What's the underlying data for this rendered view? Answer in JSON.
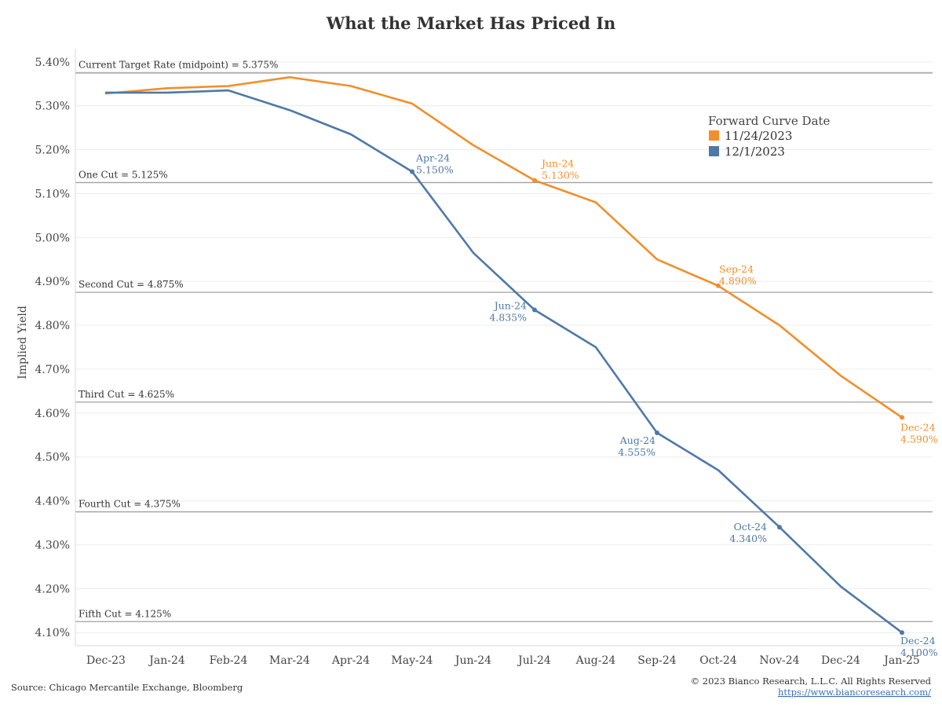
{
  "chart_data": {
    "type": "line",
    "title": "What the Market Has Priced In",
    "ylabel": "Implied Yield",
    "xlabel": "",
    "ylim": [
      4.07,
      5.43
    ],
    "y_ticks": [
      "4.10%",
      "4.20%",
      "4.30%",
      "4.40%",
      "4.50%",
      "4.60%",
      "4.70%",
      "4.80%",
      "4.90%",
      "5.00%",
      "5.10%",
      "5.20%",
      "5.30%",
      "5.40%"
    ],
    "y_tick_values": [
      4.1,
      4.2,
      4.3,
      4.4,
      4.5,
      4.6,
      4.7,
      4.8,
      4.9,
      5.0,
      5.1,
      5.2,
      5.3,
      5.4
    ],
    "categories": [
      "Dec-23",
      "Jan-24",
      "Feb-24",
      "Mar-24",
      "Apr-24",
      "May-24",
      "Jun-24",
      "Jul-24",
      "Aug-24",
      "Sep-24",
      "Oct-24",
      "Nov-24",
      "Dec-24",
      "Jan-25"
    ],
    "grid": true,
    "legend": {
      "title": "Forward Curve Date",
      "placement": "top-right"
    },
    "series": [
      {
        "name": "11/24/2023",
        "color": "#f28e2b",
        "x": [
          0,
          1,
          2,
          3,
          4,
          5,
          6,
          7,
          8,
          9,
          10,
          11,
          12,
          13
        ],
        "values": [
          5.328,
          5.34,
          5.345,
          5.365,
          5.345,
          5.305,
          5.21,
          5.13,
          5.08,
          4.95,
          4.89,
          4.8,
          4.685,
          4.59
        ],
        "annotations": [
          {
            "index": 7,
            "line1": "Jun-24",
            "line2": "5.130%"
          },
          {
            "index": 10,
            "line1": "Sep-24",
            "line2": "4.890%"
          },
          {
            "index": 13,
            "line1": "Dec-24",
            "line2": "4.590%"
          }
        ]
      },
      {
        "name": "12/1/2023",
        "color": "#4e79a7",
        "x": [
          0,
          1,
          2,
          3,
          4,
          5,
          6,
          7,
          8,
          9,
          10,
          11,
          12,
          13
        ],
        "values": [
          5.33,
          5.33,
          5.335,
          5.29,
          5.235,
          5.15,
          4.965,
          4.835,
          4.75,
          4.555,
          4.47,
          4.34,
          4.205,
          4.1
        ],
        "annotations": [
          {
            "index": 5,
            "line1": "Apr-24",
            "line2": "5.150%"
          },
          {
            "index": 7,
            "line1": "Jun-24",
            "line2": "4.835%"
          },
          {
            "index": 9,
            "line1": "Aug-24",
            "line2": "4.555%"
          },
          {
            "index": 11,
            "line1": "Oct-24",
            "line2": "4.340%"
          },
          {
            "index": 13,
            "line1": "Dec-24",
            "line2": "4.100%"
          }
        ]
      }
    ],
    "reference_lines": [
      {
        "value": 5.375,
        "label": "Current Target Rate (midpoint) = 5.375%"
      },
      {
        "value": 5.125,
        "label": "One Cut = 5.125%"
      },
      {
        "value": 4.875,
        "label": "Second Cut = 4.875%"
      },
      {
        "value": 4.625,
        "label": "Third Cut = 4.625%"
      },
      {
        "value": 4.375,
        "label": "Fourth Cut = 4.375%"
      },
      {
        "value": 4.125,
        "label": "Fifth Cut = 4.125%"
      }
    ]
  },
  "footer": {
    "source": "Source: Chicago Mercantile Exchange, Bloomberg",
    "copyright": "© 2023 Bianco Research, L.L.C. All Rights Reserved",
    "url": "https://www.biancoresearch.com/"
  }
}
